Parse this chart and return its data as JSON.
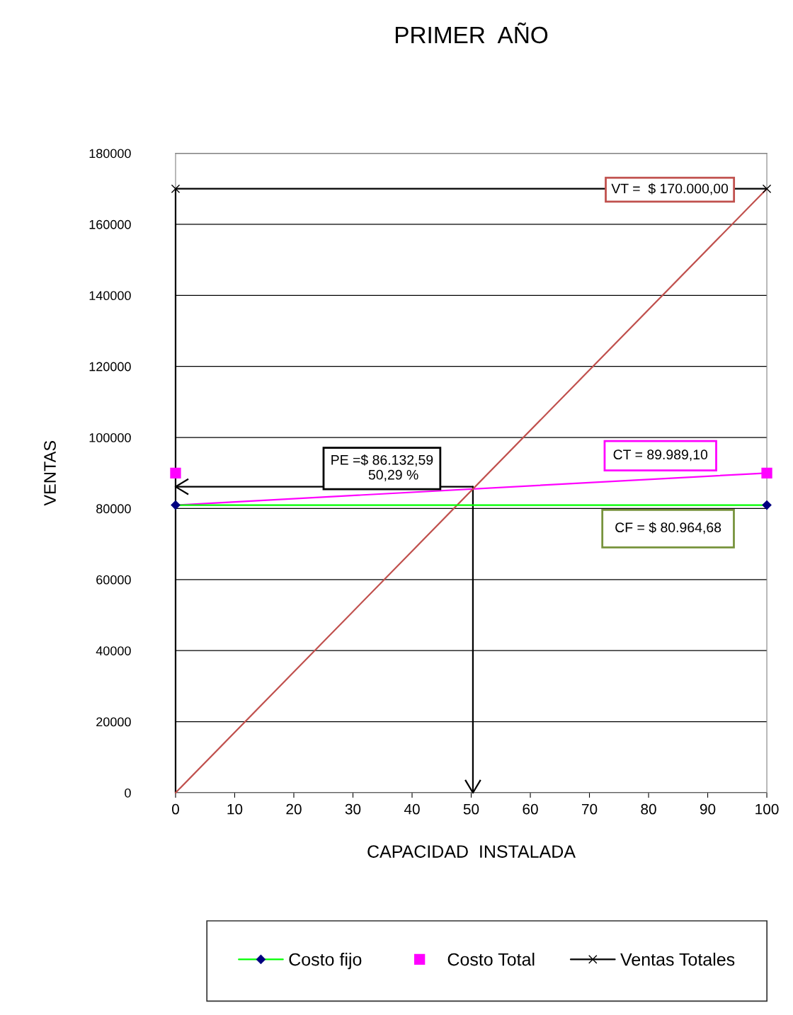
{
  "chart_data": {
    "type": "line",
    "title": "PRIMER  AÑO",
    "xlabel": "CAPACIDAD  INSTALADA",
    "ylabel": "VENTAS",
    "xlim": [
      0,
      100
    ],
    "xticks": [
      0,
      10,
      20,
      30,
      40,
      50,
      60,
      70,
      80,
      90,
      100
    ],
    "ylim": [
      0,
      180000
    ],
    "yticks": [
      0,
      20000,
      40000,
      60000,
      80000,
      100000,
      120000,
      140000,
      160000,
      180000
    ],
    "grid": "y",
    "legend": "bottom",
    "series": [
      {
        "name": "Costo fijo",
        "marker": "diamond",
        "color": "#00ff00",
        "x": [
          0,
          100
        ],
        "values": [
          80964.68,
          80964.68
        ]
      },
      {
        "name": "Costo Total",
        "type": "scatter",
        "marker": "square",
        "color": "#ff00ff",
        "x": [
          0,
          100
        ],
        "values": [
          89989.1,
          89989.1
        ]
      },
      {
        "name": "Ventas Totales",
        "marker": "cross",
        "color": "#000000",
        "x": [
          0,
          100
        ],
        "values": [
          170000,
          170000
        ]
      },
      {
        "type": "line",
        "marker": "none",
        "color": "#c0504d",
        "x": [
          0,
          100
        ],
        "values": [
          0,
          170000
        ]
      },
      {
        "type": "line",
        "marker": "none",
        "color": "#ff00ff",
        "x": [
          0,
          100
        ],
        "values": [
          80964.68,
          89989.1
        ]
      },
      {
        "marker": "none",
        "color": "#000000",
        "x": [
          0,
          0
        ],
        "values": [
          0,
          170000
        ]
      },
      {
        "marker": "none",
        "color": "#000000",
        "x": [
          50.29,
          50.29
        ],
        "values": [
          0,
          86132.59
        ]
      },
      {
        "marker": "none",
        "color": "#000000",
        "x": [
          0,
          50.29
        ],
        "values": [
          86132.59,
          86132.59
        ]
      }
    ],
    "annotations": [
      "VT =  $ 170.000,00",
      "PE =$ 86.132,59\n      50,29 %",
      "CT = 89.989,10",
      "CF = $ 80.964,68"
    ]
  }
}
